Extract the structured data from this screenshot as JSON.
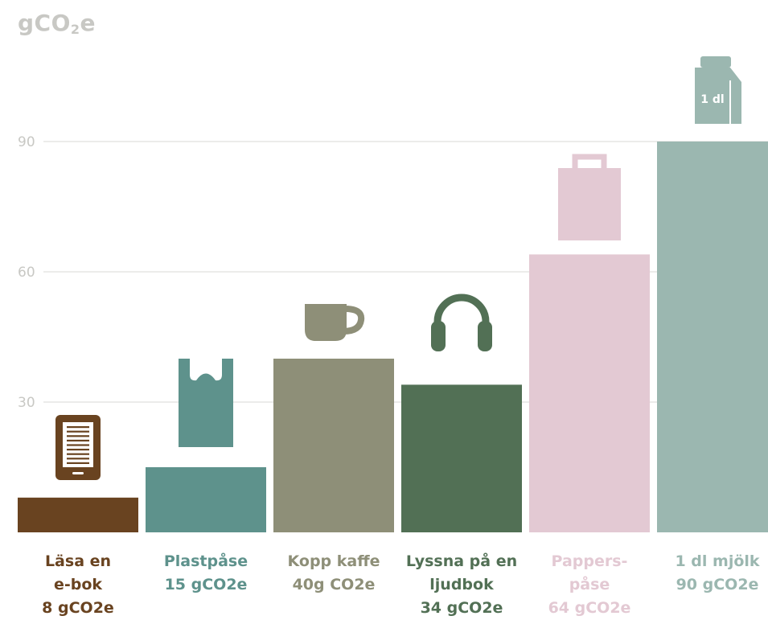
{
  "unit_title": {
    "main": "gCO",
    "sub": "2",
    "tail": "e"
  },
  "colors": {
    "grid": "#d8d8d4",
    "tick": "#c8c8c4",
    "ebook": "#694320",
    "plastic": "#5e928c",
    "coffee": "#8e8f78",
    "audiobook": "#527055",
    "paperbag": "#e3c9d3",
    "milk": "#9bb7b0"
  },
  "chart_data": {
    "type": "bar",
    "title": "",
    "ylabel": "gCO2e",
    "ylim": [
      0,
      90
    ],
    "yticks": [
      "30",
      "60",
      "90"
    ],
    "grid": true,
    "categories": [
      {
        "key": "ebook",
        "lines": [
          "Läsa en",
          "e-bok",
          "8 gCO2e"
        ],
        "value": 8,
        "icon": "ereader-icon",
        "icon_text": ""
      },
      {
        "key": "plastic",
        "lines": [
          "Plastpåse",
          "15 gCO2e"
        ],
        "value": 15,
        "icon": "plastic-bag-icon",
        "icon_text": ""
      },
      {
        "key": "coffee",
        "lines": [
          "Kopp kaffe",
          "40g CO2e"
        ],
        "value": 40,
        "icon": "coffee-cup-icon",
        "icon_text": ""
      },
      {
        "key": "audiobook",
        "lines": [
          "Lyssna på en",
          "ljudbok",
          "34 gCO2e"
        ],
        "value": 34,
        "icon": "headphones-icon",
        "icon_text": ""
      },
      {
        "key": "paperbag",
        "lines": [
          "Pappers-",
          "påse",
          "64 gCO2e"
        ],
        "value": 64,
        "icon": "paper-bag-icon",
        "icon_text": ""
      },
      {
        "key": "milk",
        "lines": [
          "1 dl mjölk",
          "90 gCO2e"
        ],
        "value": 90,
        "icon": "milk-carton-icon",
        "icon_text": "1 dl"
      }
    ]
  }
}
